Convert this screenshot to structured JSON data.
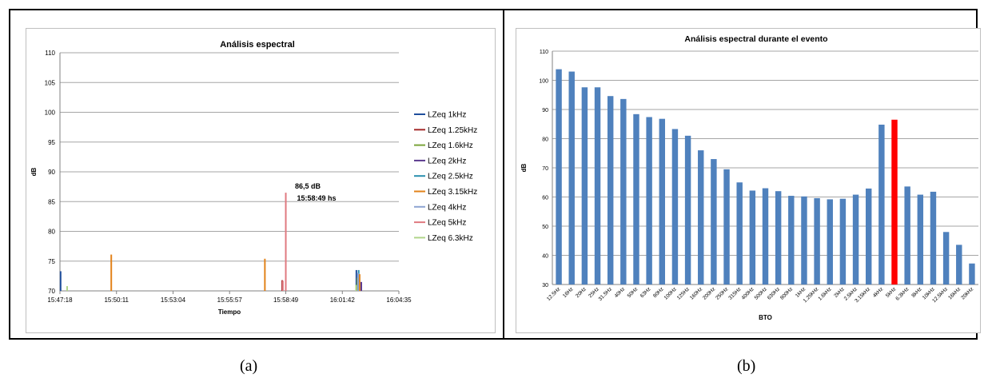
{
  "captions": {
    "a": "(a)",
    "b": "(b)"
  },
  "chart_data": [
    {
      "type": "line",
      "title": "Análisis espectral",
      "xlabel": "Tiempo",
      "ylabel": "dB",
      "ylim": [
        70,
        110
      ],
      "yticks": [
        70,
        75,
        80,
        85,
        90,
        95,
        100,
        105,
        110
      ],
      "xticks": [
        "15:47:18",
        "15:50:11",
        "15:53:04",
        "15:55:57",
        "15:58:49",
        "16:01:42",
        "16:04:35"
      ],
      "grid": true,
      "legend_position": "right",
      "series": [
        {
          "name": "LZeq 1kHz",
          "color": "#1f4e9c",
          "points": [
            [
              "15:47:20",
              73.3
            ],
            [
              "16:02:25",
              73.5
            ]
          ]
        },
        {
          "name": "LZeq 1.25kHz",
          "color": "#a52a2a",
          "points": [
            [
              "15:58:38",
              71.8
            ]
          ]
        },
        {
          "name": "LZeq 1.6kHz",
          "color": "#7aa43a",
          "points": [
            [
              "16:02:28",
              72.2
            ]
          ]
        },
        {
          "name": "LZeq 2kHz",
          "color": "#5b3a8e",
          "points": [
            [
              "16:02:40",
              71.5
            ]
          ]
        },
        {
          "name": "LZeq 2.5kHz",
          "color": "#2a8fae",
          "points": [
            [
              "16:02:32",
              73.5
            ]
          ]
        },
        {
          "name": "LZeq 3.15kHz",
          "color": "#e2821a",
          "points": [
            [
              "15:49:55",
              76.1
            ],
            [
              "15:57:45",
              75.4
            ],
            [
              "16:02:35",
              72.8
            ]
          ]
        },
        {
          "name": "LZeq 4kHz",
          "color": "#8ea4d2",
          "points": [
            [
              "16:02:30",
              73.0
            ]
          ]
        },
        {
          "name": "LZeq 5kHz",
          "color": "#e07a80",
          "points": [
            [
              "15:58:49",
              86.5
            ],
            [
              "15:58:40",
              71.7
            ]
          ]
        },
        {
          "name": "LZeq 6.3kHz",
          "color": "#b0d48a",
          "points": [
            [
              "15:47:40",
              70.8
            ],
            [
              "16:02:24",
              71.0
            ]
          ]
        }
      ],
      "annotations": [
        {
          "text": "86,5 dB",
          "color": "#e52222"
        },
        {
          "text": "15:58:49 hs",
          "color": "#000000"
        }
      ]
    },
    {
      "type": "bar",
      "title": "Análisis  espectral durante el evento",
      "xlabel": "BTO",
      "ylabel": "dB",
      "ylim": [
        30,
        110
      ],
      "yticks": [
        30,
        40,
        50,
        60,
        70,
        80,
        90,
        100,
        110
      ],
      "grid": true,
      "bar_color": "#4f81bd",
      "highlight_color": "#ff0000",
      "highlight_category": "5kHz",
      "categories": [
        "12.5Hz",
        "16Hz",
        "20Hz",
        "25Hz",
        "31.5Hz",
        "40Hz",
        "50Hz",
        "63Hz",
        "80Hz",
        "100Hz",
        "125Hz",
        "160Hz",
        "200Hz",
        "250Hz",
        "315Hz",
        "400Hz",
        "500Hz",
        "630Hz",
        "800Hz",
        "1kHz",
        "1.25kHz",
        "1.6kHz",
        "2kHz",
        "2.5kHz",
        "3.15kHz",
        "4kHz",
        "5kHz",
        "6.3kHz",
        "8kHz",
        "10kHz",
        "12.5kHz",
        "16kHz",
        "20kHz"
      ],
      "values": [
        103.8,
        103.0,
        97.6,
        97.6,
        94.6,
        93.6,
        88.4,
        87.4,
        86.8,
        83.3,
        81.0,
        76.0,
        73.0,
        69.5,
        65.0,
        62.2,
        63.0,
        62.0,
        60.4,
        60.2,
        59.6,
        59.2,
        59.4,
        60.8,
        62.9,
        84.8,
        86.5,
        63.6,
        60.8,
        61.8,
        48.0,
        43.6,
        37.2
      ]
    }
  ]
}
